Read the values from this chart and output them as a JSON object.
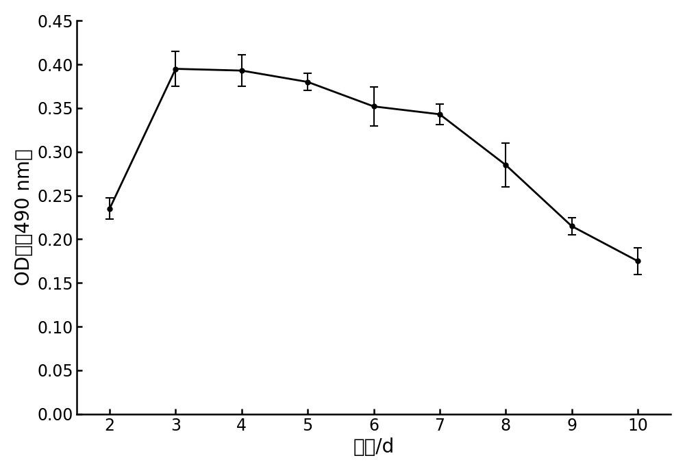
{
  "x": [
    2,
    3,
    4,
    5,
    6,
    7,
    8,
    9,
    10
  ],
  "y": [
    0.235,
    0.395,
    0.393,
    0.38,
    0.352,
    0.343,
    0.285,
    0.215,
    0.175
  ],
  "yerr": [
    0.012,
    0.02,
    0.018,
    0.01,
    0.022,
    0.012,
    0.025,
    0.01,
    0.015
  ],
  "xlabel": "时间/d",
  "ylabel": "OD值（490 nm）",
  "xlim": [
    1.5,
    10.5
  ],
  "ylim": [
    0.0,
    0.45
  ],
  "yticks": [
    0.0,
    0.05,
    0.1,
    0.15,
    0.2,
    0.25,
    0.3,
    0.35,
    0.4,
    0.45
  ],
  "xticks": [
    2,
    3,
    4,
    5,
    6,
    7,
    8,
    9,
    10
  ],
  "line_color": "#000000",
  "marker": "o",
  "markersize": 5,
  "linewidth": 2.0,
  "capsize": 4,
  "background_color": "#ffffff",
  "xlabel_fontsize": 20,
  "ylabel_fontsize": 20,
  "tick_fontsize": 17
}
